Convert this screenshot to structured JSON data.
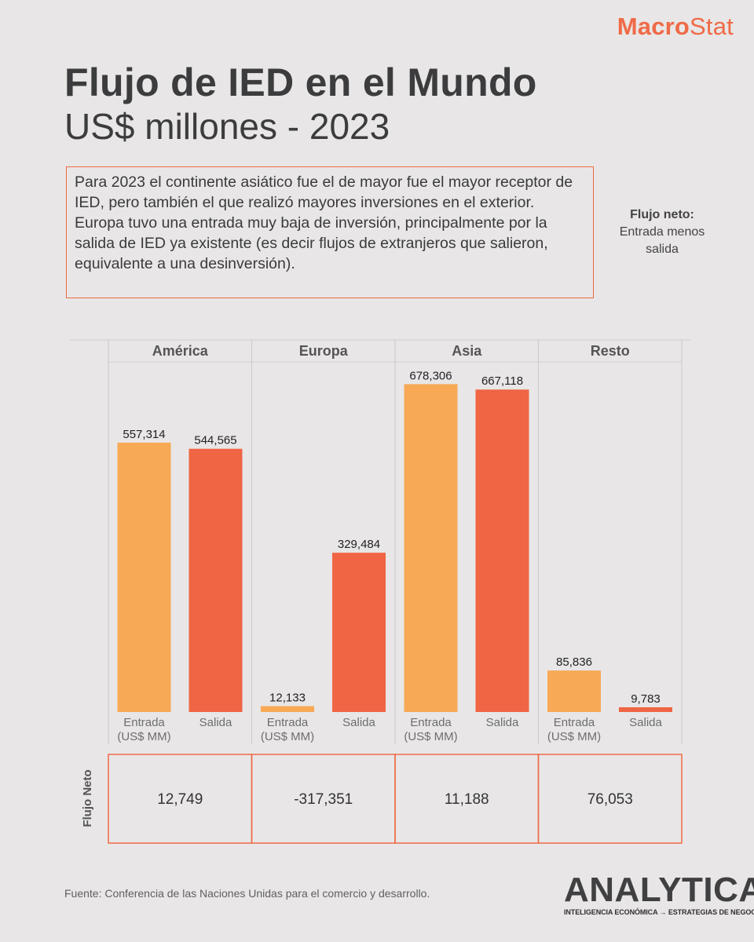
{
  "brand": {
    "part1": "Macro",
    "part2": "Stat",
    "color": "#ef6a47"
  },
  "title": "Flujo de IED en el Mundo",
  "subtitle": "US$ millones - 2023",
  "note": "Para 2023 el continente asiático fue el de mayor fue el mayor receptor de IED, pero también el que realizó mayores inversiones en el exterior.  Europa tuvo una entrada muy baja de inversión, principalmente por la salida de IED ya existente (es decir flujos de extranjeros que salieron, equivalente a una desinversión).",
  "neto_legend": {
    "title": "Flujo neto:",
    "text": "Entrada menos salida"
  },
  "chart_data": {
    "type": "bar",
    "title": "Flujo de IED en el Mundo",
    "ylabel": "US$ millones",
    "ylim": [
      0,
      700000
    ],
    "bar_labels": [
      "Entrada (US$ MM)",
      "Salida"
    ],
    "colors": {
      "entrada": "#f7a955",
      "salida": "#f06544",
      "border": "#ef6a47"
    },
    "net_label": "Flujo Neto",
    "groups": [
      {
        "name": "América",
        "entrada": 557314,
        "salida": 544565,
        "entrada_label": "557,314",
        "salida_label": "544,565",
        "net": 12749,
        "net_label": "12,749"
      },
      {
        "name": "Europa",
        "entrada": 12133,
        "salida": 329484,
        "entrada_label": "12,133",
        "salida_label": "329,484",
        "net": -317351,
        "net_label": "-317,351"
      },
      {
        "name": "Asia",
        "entrada": 678306,
        "salida": 667118,
        "entrada_label": "678,306",
        "salida_label": "667,118",
        "net": 11188,
        "net_label": "11,188"
      },
      {
        "name": "Resto",
        "entrada": 85836,
        "salida": 9783,
        "entrada_label": "85,836",
        "salida_label": "9,783",
        "net": 76053,
        "net_label": "76,053"
      }
    ]
  },
  "footer": "Fuente: Conferencia de las Naciones Unidas para el comercio y desarrollo.",
  "logo": {
    "word": "ANALYTICA",
    "tag": "INTELIGENCIA ECONÓMICA → ESTRATEGIAS DE NEGOCIO"
  }
}
